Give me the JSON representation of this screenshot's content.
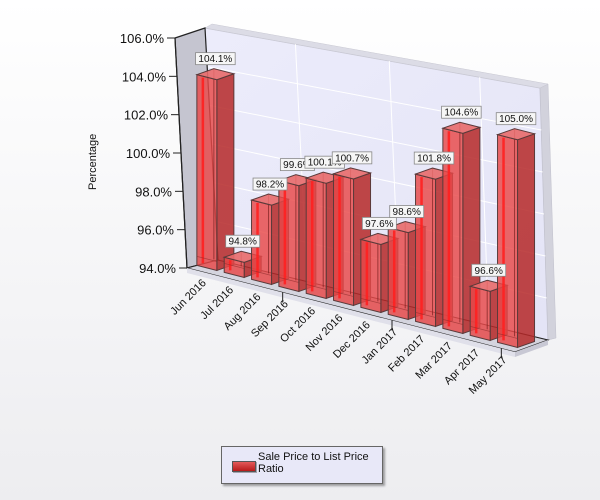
{
  "chart_data": {
    "type": "bar",
    "style": "3d-column",
    "title": "",
    "xlabel": "",
    "ylabel": "Percentage",
    "ylim": [
      94.0,
      106.0
    ],
    "yticks": [
      "94.0%",
      "96.0%",
      "98.0%",
      "100.0%",
      "102.0%",
      "104.0%",
      "106.0%"
    ],
    "categories": [
      "Jun 2016",
      "Jul 2016",
      "Aug 2016",
      "Sep 2016",
      "Oct 2016",
      "Nov 2016",
      "Dec 2016",
      "Jan 2017",
      "Feb 2017",
      "Mar 2017",
      "Apr 2017",
      "May 2017"
    ],
    "series": [
      {
        "name": "Sale Price to List Price Ratio",
        "values": [
          104.1,
          94.8,
          98.2,
          99.6,
          100.1,
          100.7,
          97.6,
          98.6,
          101.8,
          104.6,
          96.6,
          105.0
        ],
        "labels": [
          "104.1%",
          "94.8%",
          "98.2%",
          "99.6%",
          "100.1%",
          "100.7%",
          "97.6%",
          "98.6%",
          "101.8%",
          "104.6%",
          "96.6%",
          "105.0%"
        ],
        "color": "#e03030"
      }
    ],
    "grid": true,
    "legend_position": "bottom"
  },
  "legend": {
    "label": "Sale Price to List Price Ratio"
  },
  "colors": {
    "bar_fill": "#e84848",
    "bar_dark": "#a81818",
    "bar_edge": "#5a3a3a",
    "wall": "#e6e6f8",
    "left_wall": "#c6c6d2",
    "floor": "#d6d6e0"
  }
}
